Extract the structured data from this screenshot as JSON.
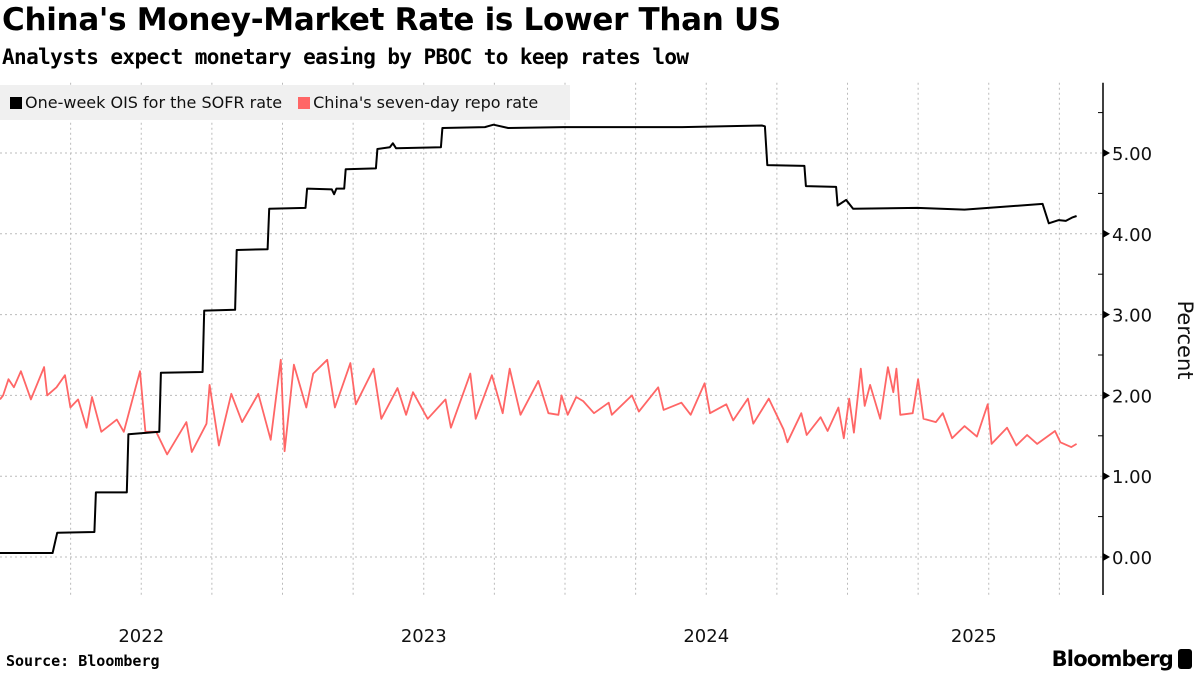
{
  "title": "China's Money-Market Rate is Lower Than US",
  "subtitle": "Analysts expect monetary easing by PBOC to keep rates low",
  "source": "Source: Bloomberg",
  "logo_text": "Bloomberg",
  "chart_data": {
    "type": "line",
    "title": "China's Money-Market Rate is Lower Than US",
    "subtitle": "Analysts expect monetary easing by PBOC to keep rates low",
    "xlabel": "",
    "ylabel": "Percent",
    "ylim": [
      -0.47,
      5.87
    ],
    "xlim": [
      "2022-01-01",
      "2025-11-01"
    ],
    "y_ticks": [
      "0.00",
      "1.00",
      "2.00",
      "3.00",
      "4.00",
      "5.00"
    ],
    "x_ticks": [
      "2022",
      "2023",
      "2024",
      "2025"
    ],
    "grid": true,
    "legend_position": "top-left",
    "y_axis_side": "right",
    "series": [
      {
        "name": "One-week OIS for the SOFR rate",
        "color": "#000000",
        "points": [
          [
            "2022-01-01",
            0.05
          ],
          [
            "2022-03-10",
            0.05
          ],
          [
            "2022-03-16",
            0.3
          ],
          [
            "2022-05-03",
            0.31
          ],
          [
            "2022-05-05",
            0.8
          ],
          [
            "2022-06-14",
            0.8
          ],
          [
            "2022-06-16",
            1.52
          ],
          [
            "2022-07-26",
            1.55
          ],
          [
            "2022-07-28",
            2.28
          ],
          [
            "2022-09-20",
            2.29
          ],
          [
            "2022-09-22",
            3.05
          ],
          [
            "2022-11-01",
            3.06
          ],
          [
            "2022-11-03",
            3.8
          ],
          [
            "2022-12-13",
            3.81
          ],
          [
            "2022-12-15",
            4.31
          ],
          [
            "2023-01-31",
            4.32
          ],
          [
            "2023-02-02",
            4.56
          ],
          [
            "2023-03-06",
            4.55
          ],
          [
            "2023-03-09",
            4.49
          ],
          [
            "2023-03-12",
            4.56
          ],
          [
            "2023-03-22",
            4.56
          ],
          [
            "2023-03-24",
            4.8
          ],
          [
            "2023-05-02",
            4.81
          ],
          [
            "2023-05-04",
            5.05
          ],
          [
            "2023-05-20",
            5.07
          ],
          [
            "2023-05-24",
            5.12
          ],
          [
            "2023-05-28",
            5.06
          ],
          [
            "2023-07-25",
            5.07
          ],
          [
            "2023-07-27",
            5.31
          ],
          [
            "2023-09-20",
            5.32
          ],
          [
            "2023-10-01",
            5.35
          ],
          [
            "2023-10-20",
            5.31
          ],
          [
            "2023-12-31",
            5.32
          ],
          [
            "2024-06-01",
            5.32
          ],
          [
            "2024-09-12",
            5.34
          ],
          [
            "2024-09-16",
            5.33
          ],
          [
            "2024-09-19",
            4.85
          ],
          [
            "2024-11-06",
            4.84
          ],
          [
            "2024-11-08",
            4.59
          ],
          [
            "2024-12-17",
            4.58
          ],
          [
            "2024-12-19",
            4.35
          ],
          [
            "2024-12-30",
            4.42
          ],
          [
            "2025-01-08",
            4.31
          ],
          [
            "2025-04-01",
            4.32
          ],
          [
            "2025-06-01",
            4.3
          ],
          [
            "2025-07-15",
            4.33
          ],
          [
            "2025-09-10",
            4.37
          ],
          [
            "2025-09-18",
            4.13
          ],
          [
            "2025-10-01",
            4.17
          ],
          [
            "2025-10-10",
            4.16
          ],
          [
            "2025-10-18",
            4.2
          ],
          [
            "2025-10-24",
            4.22
          ]
        ]
      },
      {
        "name": "China's seven-day repo rate",
        "color": "#ff6666",
        "points": [
          [
            "2022-01-01",
            1.95
          ],
          [
            "2022-01-05",
            2.0
          ],
          [
            "2022-01-12",
            2.2
          ],
          [
            "2022-01-19",
            2.1
          ],
          [
            "2022-01-28",
            2.3
          ],
          [
            "2022-02-10",
            1.95
          ],
          [
            "2022-02-27",
            2.35
          ],
          [
            "2022-03-03",
            2.0
          ],
          [
            "2022-03-15",
            2.1
          ],
          [
            "2022-03-26",
            2.25
          ],
          [
            "2022-04-02",
            1.85
          ],
          [
            "2022-04-12",
            1.95
          ],
          [
            "2022-04-23",
            1.6
          ],
          [
            "2022-04-30",
            1.98
          ],
          [
            "2022-05-12",
            1.55
          ],
          [
            "2022-06-01",
            1.7
          ],
          [
            "2022-06-10",
            1.55
          ],
          [
            "2022-07-01",
            2.3
          ],
          [
            "2022-07-08",
            1.55
          ],
          [
            "2022-07-22",
            1.55
          ],
          [
            "2022-08-05",
            1.27
          ],
          [
            "2022-08-30",
            1.67
          ],
          [
            "2022-09-06",
            1.3
          ],
          [
            "2022-09-25",
            1.65
          ],
          [
            "2022-09-29",
            2.13
          ],
          [
            "2022-10-11",
            1.38
          ],
          [
            "2022-10-27",
            2.02
          ],
          [
            "2022-11-10",
            1.67
          ],
          [
            "2022-12-01",
            2.02
          ],
          [
            "2022-12-17",
            1.45
          ],
          [
            "2022-12-30",
            2.44
          ],
          [
            "2023-01-04",
            1.31
          ],
          [
            "2023-01-16",
            2.38
          ],
          [
            "2023-02-01",
            1.85
          ],
          [
            "2023-02-10",
            2.27
          ],
          [
            "2023-02-28",
            2.44
          ],
          [
            "2023-03-10",
            1.85
          ],
          [
            "2023-03-30",
            2.4
          ],
          [
            "2023-04-06",
            1.89
          ],
          [
            "2023-04-29",
            2.33
          ],
          [
            "2023-05-09",
            1.71
          ],
          [
            "2023-05-30",
            2.09
          ],
          [
            "2023-06-10",
            1.76
          ],
          [
            "2023-06-19",
            2.04
          ],
          [
            "2023-07-08",
            1.71
          ],
          [
            "2023-07-31",
            1.95
          ],
          [
            "2023-08-07",
            1.6
          ],
          [
            "2023-09-01",
            2.27
          ],
          [
            "2023-09-08",
            1.71
          ],
          [
            "2023-09-29",
            2.25
          ],
          [
            "2023-10-13",
            1.78
          ],
          [
            "2023-10-22",
            2.33
          ],
          [
            "2023-11-05",
            1.76
          ],
          [
            "2023-11-28",
            2.18
          ],
          [
            "2023-12-11",
            1.78
          ],
          [
            "2023-12-24",
            1.76
          ],
          [
            "2023-12-28",
            2.0
          ],
          [
            "2024-01-05",
            1.76
          ],
          [
            "2024-01-16",
            1.98
          ],
          [
            "2024-01-25",
            1.93
          ],
          [
            "2024-02-08",
            1.78
          ],
          [
            "2024-02-27",
            1.91
          ],
          [
            "2024-03-02",
            1.76
          ],
          [
            "2024-03-28",
            2.0
          ],
          [
            "2024-04-06",
            1.8
          ],
          [
            "2024-05-01",
            2.1
          ],
          [
            "2024-05-08",
            1.82
          ],
          [
            "2024-05-31",
            1.91
          ],
          [
            "2024-06-12",
            1.76
          ],
          [
            "2024-06-30",
            2.15
          ],
          [
            "2024-07-07",
            1.78
          ],
          [
            "2024-07-28",
            1.89
          ],
          [
            "2024-08-06",
            1.69
          ],
          [
            "2024-08-25",
            1.96
          ],
          [
            "2024-09-01",
            1.65
          ],
          [
            "2024-09-21",
            1.96
          ],
          [
            "2024-09-30",
            1.78
          ],
          [
            "2024-10-10",
            1.58
          ],
          [
            "2024-10-15",
            1.42
          ],
          [
            "2024-11-02",
            1.78
          ],
          [
            "2024-11-09",
            1.51
          ],
          [
            "2024-11-27",
            1.73
          ],
          [
            "2024-12-06",
            1.56
          ],
          [
            "2024-12-20",
            1.85
          ],
          [
            "2024-12-27",
            1.47
          ],
          [
            "2025-01-03",
            1.96
          ],
          [
            "2025-01-09",
            1.54
          ],
          [
            "2025-01-18",
            2.33
          ],
          [
            "2025-01-23",
            1.87
          ],
          [
            "2025-01-30",
            2.13
          ],
          [
            "2025-02-12",
            1.71
          ],
          [
            "2025-02-22",
            2.35
          ],
          [
            "2025-03-01",
            2.04
          ],
          [
            "2025-03-05",
            2.33
          ],
          [
            "2025-03-10",
            1.76
          ],
          [
            "2025-03-26",
            1.78
          ],
          [
            "2025-04-02",
            2.2
          ],
          [
            "2025-04-09",
            1.71
          ],
          [
            "2025-04-25",
            1.67
          ],
          [
            "2025-05-04",
            1.78
          ],
          [
            "2025-05-16",
            1.47
          ],
          [
            "2025-06-01",
            1.62
          ],
          [
            "2025-06-17",
            1.49
          ],
          [
            "2025-07-01",
            1.89
          ],
          [
            "2025-07-06",
            1.4
          ],
          [
            "2025-07-26",
            1.6
          ],
          [
            "2025-08-07",
            1.38
          ],
          [
            "2025-08-21",
            1.51
          ],
          [
            "2025-09-03",
            1.4
          ],
          [
            "2025-09-26",
            1.56
          ],
          [
            "2025-10-03",
            1.42
          ],
          [
            "2025-10-17",
            1.36
          ],
          [
            "2025-10-24",
            1.4
          ]
        ]
      }
    ]
  }
}
